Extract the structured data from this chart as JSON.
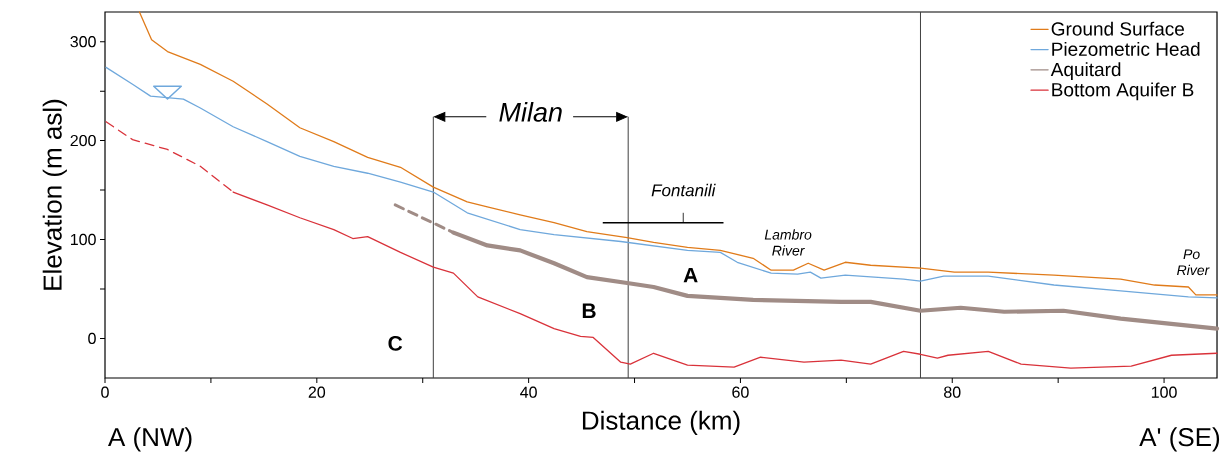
{
  "chart_data": {
    "type": "line",
    "xlabel": "Distance (km)",
    "ylabel": "Elevation (m asl)",
    "xlim": [
      0,
      105
    ],
    "ylim": [
      -40,
      330
    ],
    "xticks": [
      0,
      {
        "value": 10,
        "label": null
      },
      20,
      {
        "value": 30,
        "label": null
      },
      40,
      {
        "value": 50,
        "label": null
      },
      60,
      {
        "value": 70,
        "label": null
      },
      80,
      {
        "value": 90,
        "label": null
      },
      100
    ],
    "yticks": [
      0,
      {
        "value": 50,
        "label": null
      },
      100,
      {
        "value": 150,
        "label": null
      },
      200,
      {
        "value": 250,
        "label": null
      },
      300
    ],
    "legend": "top right",
    "grid": false,
    "marker": "none",
    "ref_lines": [
      {
        "axis": "x",
        "value": 31,
        "color": "#404040"
      },
      {
        "axis": "x",
        "value": 49.4,
        "color": "#404040"
      },
      {
        "axis": "x",
        "value": 77,
        "color": "#404040"
      }
    ],
    "annotations": [
      "Milan",
      "Fontanili",
      "Lambro River",
      "Po River",
      "A",
      "B",
      "C",
      "A (NW)",
      "A' (SE)"
    ],
    "series": [
      {
        "name": "Ground Surface",
        "color": "#e07b1a",
        "line_style": "solid",
        "x": [
          3.25,
          4.4,
          5.9,
          9.0,
          12.1,
          15.3,
          18.4,
          21.6,
          24.8,
          27.9,
          31.0,
          34.2,
          36.1,
          39.2,
          42.4,
          45.5,
          49.3,
          51.8,
          55.0,
          58.1,
          61.2,
          62.9,
          65.0,
          66.4,
          67.9,
          69.9,
          72.3,
          77.0,
          80.2,
          83.4,
          89.6,
          95.9,
          99.1,
          102.3,
          103.0,
          105.0
        ],
        "values": [
          330,
          302,
          290,
          277,
          260,
          237,
          213,
          199,
          183,
          173,
          153,
          138,
          133,
          125,
          117,
          108,
          102,
          97,
          92,
          89,
          81,
          69,
          69,
          76,
          69,
          77,
          74,
          71,
          67,
          67,
          64,
          60,
          54,
          52,
          44,
          44
        ]
      },
      {
        "name": "Piezometric Head",
        "color": "#6fa8dc",
        "line_style": "solid",
        "x": [
          0.1,
          2.6,
          4.3,
          7.4,
          9.0,
          12.1,
          15.3,
          18.4,
          21.6,
          24.8,
          27.9,
          31.0,
          34.2,
          39.2,
          42.4,
          48.7,
          55.0,
          58.1,
          59.7,
          62.9,
          65.4,
          66.6,
          67.6,
          69.9,
          75.4,
          77.0,
          79.2,
          83.4,
          89.6,
          95.9,
          102.3,
          105.0
        ],
        "values": [
          274,
          257,
          245,
          242,
          233,
          214,
          199,
          184,
          174,
          167,
          158,
          148,
          127,
          110,
          105,
          98,
          89,
          87,
          77,
          66,
          65,
          67,
          61,
          64,
          60,
          58,
          63,
          63,
          54,
          48,
          42,
          41
        ]
      },
      {
        "name": "Aquitard",
        "color": "#a08c86",
        "line_style": "solid",
        "x": [
          32.9,
          36.1,
          39.2,
          42.4,
          45.5,
          49.3,
          51.8,
          55.0,
          61.2,
          69.5,
          72.3,
          77.0,
          80.8,
          84.9,
          90.5,
          95.9,
          105.0
        ],
        "values": [
          107,
          94,
          89,
          76,
          62,
          56,
          52,
          43,
          39,
          37,
          37,
          28,
          31,
          27,
          28,
          20,
          10
        ]
      },
      {
        "name": "Bottom Aquifer B",
        "color": "#d9323a",
        "line_style": "solid",
        "x": [
          12.1,
          15.3,
          18.4,
          21.6,
          23.4,
          24.8,
          27.9,
          31.0,
          32.9,
          35.2,
          39.2,
          42.4,
          44.9,
          46.1,
          48.7,
          49.6,
          51.8,
          55.0,
          59.4,
          61.9,
          66.0,
          69.5,
          72.3,
          75.4,
          77.0,
          78.6,
          79.6,
          83.4,
          86.5,
          91.2,
          96.9,
          100.7,
          105.0
        ],
        "values": [
          148,
          135,
          122,
          110,
          101,
          103,
          87,
          72,
          66,
          42,
          25,
          10,
          2,
          1,
          -24,
          -26,
          -15,
          -27,
          -29,
          -19,
          -24,
          -22,
          -26,
          -13,
          -16,
          -20,
          -17,
          -13,
          -26,
          -30,
          -28,
          -17,
          -15
        ]
      },
      {
        "color": "#a08c86",
        "line_style": "dashed",
        "x": [
          27.4,
          32.9
        ],
        "values": [
          135,
          107
        ]
      },
      {
        "color": "#d9323a",
        "line_style": "dashed",
        "x": [
          0.1,
          2.6,
          5.9,
          9.0,
          11.5,
          12.1
        ],
        "values": [
          219,
          201,
          191,
          174,
          153,
          148
        ]
      }
    ]
  }
}
